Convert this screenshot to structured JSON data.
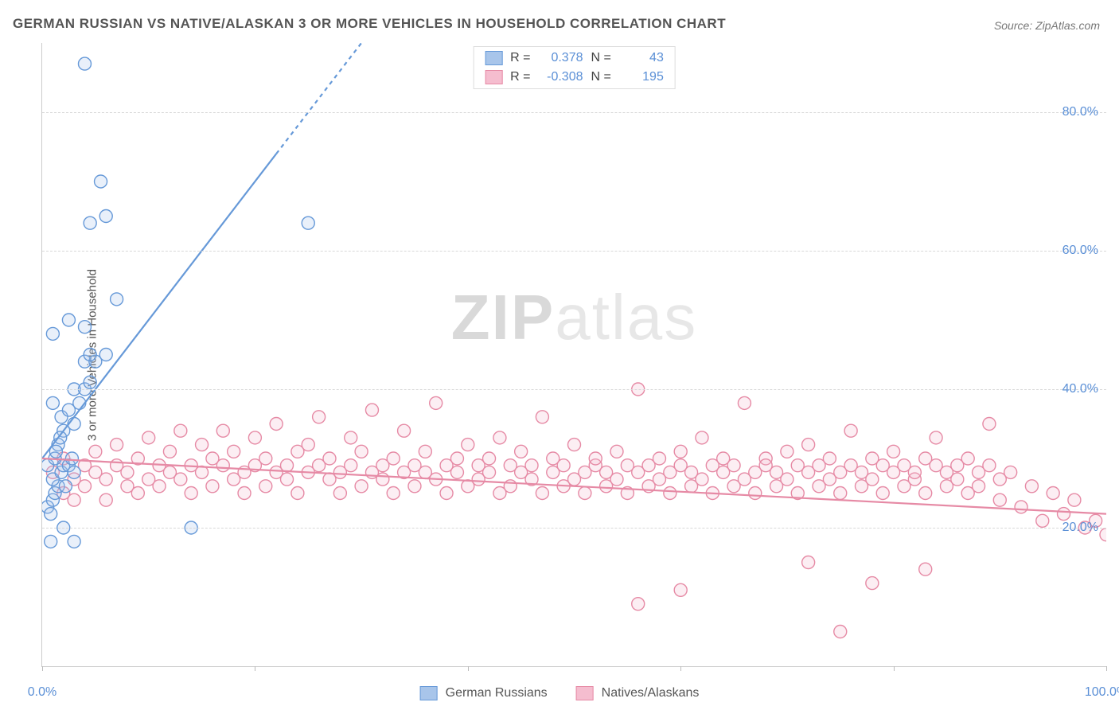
{
  "meta": {
    "title": "GERMAN RUSSIAN VS NATIVE/ALASKAN 3 OR MORE VEHICLES IN HOUSEHOLD CORRELATION CHART",
    "source": "Source: ZipAtlas.com",
    "watermark_a": "ZIP",
    "watermark_b": "atlas"
  },
  "chart": {
    "type": "scatter",
    "ylabel": "3 or more Vehicles in Household",
    "xlim": [
      0,
      100
    ],
    "ylim": [
      0,
      90
    ],
    "xticks": [
      0,
      20,
      40,
      60,
      80,
      100
    ],
    "xtick_labels": {
      "0": "0.0%",
      "100": "100.0%"
    },
    "yticks": [
      20,
      40,
      60,
      80
    ],
    "ytick_labels": {
      "20": "20.0%",
      "40": "40.0%",
      "60": "60.0%",
      "80": "80.0%"
    },
    "grid_color": "#d8d8d8",
    "axis_color": "#cccccc",
    "background_color": "#ffffff",
    "tick_label_color": "#5a8fd6",
    "marker_radius": 8,
    "marker_stroke_width": 1.4,
    "marker_fill_opacity": 0.25,
    "trend_line_width": 2.2
  },
  "series": {
    "blue": {
      "label": "German Russians",
      "stroke": "#6699d8",
      "fill": "#a8c5ea",
      "R": "0.378",
      "N": "43",
      "trend": {
        "x1": 0,
        "y1": 30,
        "x2": 30,
        "y2": 90,
        "dash_after_x": 22
      },
      "points": [
        [
          0.5,
          23
        ],
        [
          0.8,
          22
        ],
        [
          1.0,
          24
        ],
        [
          1.2,
          25
        ],
        [
          1.5,
          26
        ],
        [
          1.0,
          27
        ],
        [
          1.8,
          28
        ],
        [
          0.5,
          29
        ],
        [
          2.0,
          29
        ],
        [
          1.2,
          30
        ],
        [
          2.5,
          29
        ],
        [
          2.8,
          30
        ],
        [
          3.0,
          28
        ],
        [
          1.5,
          32
        ],
        [
          2.0,
          34
        ],
        [
          3.0,
          35
        ],
        [
          1.8,
          36
        ],
        [
          2.5,
          37
        ],
        [
          3.5,
          38
        ],
        [
          1.0,
          38
        ],
        [
          3.0,
          40
        ],
        [
          4.0,
          40
        ],
        [
          4.5,
          41
        ],
        [
          4.0,
          44
        ],
        [
          5.0,
          44
        ],
        [
          4.5,
          45
        ],
        [
          6.0,
          45
        ],
        [
          1.0,
          48
        ],
        [
          4.0,
          49
        ],
        [
          2.5,
          50
        ],
        [
          7.0,
          53
        ],
        [
          4.5,
          64
        ],
        [
          6.0,
          65
        ],
        [
          5.5,
          70
        ],
        [
          4.0,
          87
        ],
        [
          0.8,
          18
        ],
        [
          3.0,
          18
        ],
        [
          2.0,
          20
        ],
        [
          14.0,
          20
        ],
        [
          2.2,
          26
        ],
        [
          1.3,
          31
        ],
        [
          25.0,
          64
        ],
        [
          1.7,
          33
        ]
      ]
    },
    "pink": {
      "label": "Natives/Alaskans",
      "stroke": "#e68aa5",
      "fill": "#f5bdcf",
      "R": "-0.308",
      "N": "195",
      "trend": {
        "x1": 0,
        "y1": 30,
        "x2": 100,
        "y2": 22
      },
      "points": [
        [
          1,
          28
        ],
        [
          2,
          25
        ],
        [
          2,
          30
        ],
        [
          3,
          27
        ],
        [
          3,
          24
        ],
        [
          4,
          29
        ],
        [
          4,
          26
        ],
        [
          5,
          28
        ],
        [
          5,
          31
        ],
        [
          6,
          27
        ],
        [
          6,
          24
        ],
        [
          7,
          29
        ],
        [
          7,
          32
        ],
        [
          8,
          26
        ],
        [
          8,
          28
        ],
        [
          9,
          30
        ],
        [
          9,
          25
        ],
        [
          10,
          27
        ],
        [
          10,
          33
        ],
        [
          11,
          29
        ],
        [
          11,
          26
        ],
        [
          12,
          28
        ],
        [
          12,
          31
        ],
        [
          13,
          34
        ],
        [
          13,
          27
        ],
        [
          14,
          29
        ],
        [
          14,
          25
        ],
        [
          15,
          28
        ],
        [
          15,
          32
        ],
        [
          16,
          30
        ],
        [
          16,
          26
        ],
        [
          17,
          29
        ],
        [
          17,
          34
        ],
        [
          18,
          27
        ],
        [
          18,
          31
        ],
        [
          19,
          28
        ],
        [
          19,
          25
        ],
        [
          20,
          33
        ],
        [
          20,
          29
        ],
        [
          21,
          30
        ],
        [
          21,
          26
        ],
        [
          22,
          28
        ],
        [
          22,
          35
        ],
        [
          23,
          29
        ],
        [
          23,
          27
        ],
        [
          24,
          31
        ],
        [
          24,
          25
        ],
        [
          25,
          28
        ],
        [
          25,
          32
        ],
        [
          26,
          29
        ],
        [
          26,
          36
        ],
        [
          27,
          27
        ],
        [
          27,
          30
        ],
        [
          28,
          28
        ],
        [
          28,
          25
        ],
        [
          29,
          33
        ],
        [
          29,
          29
        ],
        [
          30,
          31
        ],
        [
          30,
          26
        ],
        [
          31,
          28
        ],
        [
          31,
          37
        ],
        [
          32,
          29
        ],
        [
          32,
          27
        ],
        [
          33,
          30
        ],
        [
          33,
          25
        ],
        [
          34,
          28
        ],
        [
          34,
          34
        ],
        [
          35,
          29
        ],
        [
          35,
          26
        ],
        [
          36,
          31
        ],
        [
          36,
          28
        ],
        [
          37,
          27
        ],
        [
          37,
          38
        ],
        [
          38,
          29
        ],
        [
          38,
          25
        ],
        [
          39,
          30
        ],
        [
          39,
          28
        ],
        [
          40,
          26
        ],
        [
          40,
          32
        ],
        [
          41,
          29
        ],
        [
          41,
          27
        ],
        [
          42,
          28
        ],
        [
          42,
          30
        ],
        [
          43,
          25
        ],
        [
          43,
          33
        ],
        [
          44,
          29
        ],
        [
          44,
          26
        ],
        [
          45,
          28
        ],
        [
          45,
          31
        ],
        [
          46,
          27
        ],
        [
          46,
          29
        ],
        [
          47,
          36
        ],
        [
          47,
          25
        ],
        [
          48,
          28
        ],
        [
          48,
          30
        ],
        [
          49,
          26
        ],
        [
          49,
          29
        ],
        [
          50,
          27
        ],
        [
          50,
          32
        ],
        [
          51,
          28
        ],
        [
          51,
          25
        ],
        [
          52,
          29
        ],
        [
          52,
          30
        ],
        [
          53,
          26
        ],
        [
          53,
          28
        ],
        [
          54,
          31
        ],
        [
          54,
          27
        ],
        [
          55,
          29
        ],
        [
          55,
          25
        ],
        [
          56,
          28
        ],
        [
          56,
          40
        ],
        [
          57,
          26
        ],
        [
          57,
          29
        ],
        [
          58,
          30
        ],
        [
          58,
          27
        ],
        [
          59,
          28
        ],
        [
          59,
          25
        ],
        [
          60,
          31
        ],
        [
          60,
          29
        ],
        [
          61,
          26
        ],
        [
          61,
          28
        ],
        [
          62,
          27
        ],
        [
          62,
          33
        ],
        [
          63,
          29
        ],
        [
          63,
          25
        ],
        [
          64,
          28
        ],
        [
          64,
          30
        ],
        [
          65,
          26
        ],
        [
          65,
          29
        ],
        [
          66,
          27
        ],
        [
          66,
          38
        ],
        [
          67,
          28
        ],
        [
          67,
          25
        ],
        [
          68,
          30
        ],
        [
          68,
          29
        ],
        [
          69,
          26
        ],
        [
          69,
          28
        ],
        [
          70,
          31
        ],
        [
          70,
          27
        ],
        [
          71,
          29
        ],
        [
          71,
          25
        ],
        [
          72,
          28
        ],
        [
          72,
          32
        ],
        [
          73,
          26
        ],
        [
          73,
          29
        ],
        [
          74,
          27
        ],
        [
          74,
          30
        ],
        [
          75,
          28
        ],
        [
          75,
          25
        ],
        [
          76,
          29
        ],
        [
          76,
          34
        ],
        [
          77,
          26
        ],
        [
          77,
          28
        ],
        [
          78,
          30
        ],
        [
          78,
          27
        ],
        [
          79,
          29
        ],
        [
          79,
          25
        ],
        [
          80,
          28
        ],
        [
          80,
          31
        ],
        [
          81,
          26
        ],
        [
          81,
          29
        ],
        [
          82,
          27
        ],
        [
          82,
          28
        ],
        [
          83,
          30
        ],
        [
          83,
          25
        ],
        [
          84,
          29
        ],
        [
          84,
          33
        ],
        [
          85,
          26
        ],
        [
          85,
          28
        ],
        [
          86,
          27
        ],
        [
          86,
          29
        ],
        [
          87,
          30
        ],
        [
          87,
          25
        ],
        [
          88,
          28
        ],
        [
          88,
          26
        ],
        [
          89,
          29
        ],
        [
          89,
          35
        ],
        [
          90,
          27
        ],
        [
          90,
          24
        ],
        [
          91,
          28
        ],
        [
          92,
          23
        ],
        [
          93,
          26
        ],
        [
          94,
          21
        ],
        [
          95,
          25
        ],
        [
          96,
          22
        ],
        [
          97,
          24
        ],
        [
          98,
          20
        ],
        [
          99,
          21
        ],
        [
          100,
          19
        ],
        [
          56,
          9
        ],
        [
          60,
          11
        ],
        [
          75,
          5
        ],
        [
          78,
          12
        ],
        [
          83,
          14
        ],
        [
          72,
          15
        ]
      ]
    }
  },
  "legend": {
    "item1": "German Russians",
    "item2": "Natives/Alaskans"
  }
}
